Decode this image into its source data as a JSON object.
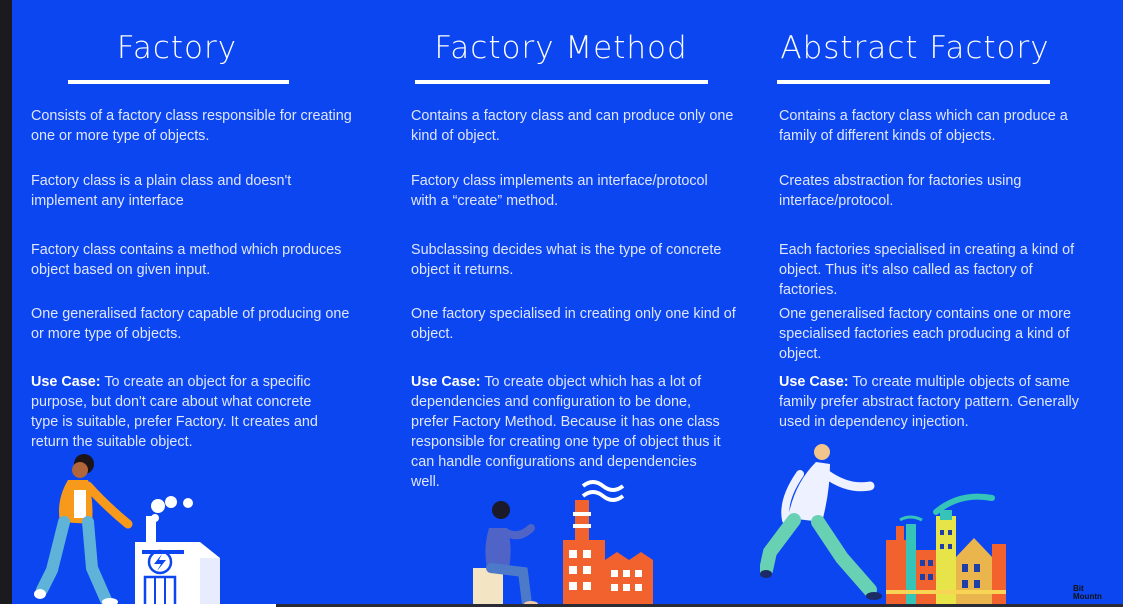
{
  "columns": [
    {
      "title": "Factory",
      "points": [
        "Consists of a factory class responsible for creating one or more type of objects.",
        "Factory class is a plain class and doesn't implement any interface",
        "Factory class contains a method which produces object based on given input.",
        "One generalised factory capable of producing one or more type of objects."
      ],
      "use_case_label": "Use Case:",
      "use_case_text": " To create an object for a specific purpose, but don't care about what concrete type is suitable, prefer Factory. It creates and return the suitable object."
    },
    {
      "title": "Factory Method",
      "points": [
        "Contains a factory class and can produce only one kind of object.",
        "Factory class implements an interface/protocol with a “create” method.",
        "Subclassing decides what is the type of concrete object it returns.",
        "One factory specialised in creating only one kind of object."
      ],
      "use_case_label": "Use Case:",
      "use_case_text": " To create object which has a lot of dependencies and configuration to be done, prefer Factory Method. Because it has one class responsible for creating one type of object thus it can handle configurations and dependencies well."
    },
    {
      "title": "Abstract Factory",
      "points": [
        "Contains a factory class which can produce a family of different kinds of objects.",
        "Creates abstraction for factories using interface/protocol.",
        "Each factories specialised in creating a kind of object. Thus it's also called as factory of factories.",
        "One generalised factory contains one or more specialised factories each producing a kind of object."
      ],
      "use_case_label": "Use Case:",
      "use_case_text": " To create multiple objects of same family prefer abstract factory pattern. Generally used in dependency injection."
    }
  ],
  "logo": {
    "line1": "Bit",
    "line2": "Mountn"
  },
  "colors": {
    "background": "#0b46f0",
    "text": "#dfe6ff",
    "factory_orange": "#f2622e",
    "accent_teal": "#36c4b8"
  },
  "illustrations": [
    "walking-person-with-factory",
    "sitting-person-with-factory",
    "running-person-with-factories"
  ]
}
